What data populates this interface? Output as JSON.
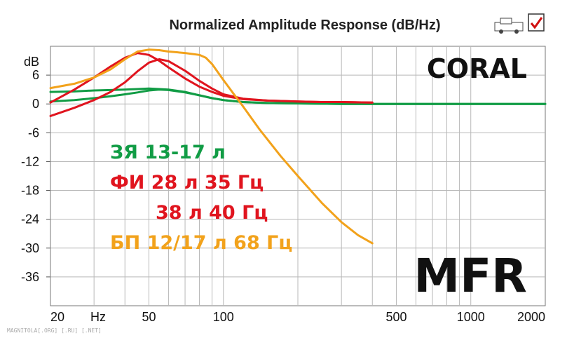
{
  "chart_data": {
    "type": "line",
    "title": "Normalized Amplitude Response (dB/Hz)",
    "y_unit_label": "dB",
    "x_unit_label": "Hz",
    "x_scale": "log",
    "xlim": [
      20,
      2000
    ],
    "ylim": [
      -42,
      12
    ],
    "x_tick_labels": [
      {
        "value": 20,
        "label": "20"
      },
      {
        "value": 50,
        "label": "50"
      },
      {
        "value": 100,
        "label": "100"
      },
      {
        "value": 500,
        "label": "500"
      },
      {
        "value": 1000,
        "label": "1000"
      },
      {
        "value": 2000,
        "label": "2000"
      }
    ],
    "y_tick_labels": [
      {
        "value": 6,
        "label": "6"
      },
      {
        "value": 0,
        "label": "0"
      },
      {
        "value": -6,
        "label": "-6"
      },
      {
        "value": -12,
        "label": "-12"
      },
      {
        "value": -18,
        "label": "-18"
      },
      {
        "value": -24,
        "label": "-24"
      },
      {
        "value": -30,
        "label": "-30"
      },
      {
        "value": -36,
        "label": "-36"
      }
    ],
    "grid": true,
    "brand": "CORAL",
    "watermark": "MFR",
    "annotations": [
      {
        "text": "ЗЯ 13-17 л",
        "color": "#119c45"
      },
      {
        "text": "ФИ 28 л 35 Гц",
        "color": "#e0141e"
      },
      {
        "text": "38 л 40 Гц",
        "color": "#e0141e"
      },
      {
        "text": "БП 12/17 л 68 Гц",
        "color": "#f2a21b"
      }
    ],
    "series": [
      {
        "color": "#119c45",
        "x": [
          20,
          25,
          30,
          35,
          40,
          45,
          50,
          55,
          60,
          70,
          80,
          90,
          100,
          120,
          150,
          200,
          300,
          500,
          1000,
          2000
        ],
        "y": [
          2.5,
          2.6,
          2.8,
          2.9,
          3.0,
          3.1,
          3.2,
          3.1,
          3.0,
          2.5,
          1.8,
          1.2,
          0.8,
          0.4,
          0.2,
          0.1,
          0.0,
          0.0,
          0.0,
          0.0
        ]
      },
      {
        "color": "#119c45",
        "x": [
          20,
          25,
          30,
          35,
          40,
          45,
          50,
          55,
          60,
          70,
          80,
          90,
          100,
          120,
          150,
          200,
          300,
          500,
          1000,
          2000
        ],
        "y": [
          0.5,
          0.8,
          1.2,
          1.6,
          2.0,
          2.4,
          2.8,
          3.0,
          2.9,
          2.4,
          1.8,
          1.2,
          0.8,
          0.4,
          0.2,
          0.1,
          0.0,
          0.0,
          0.0,
          0.0
        ]
      },
      {
        "color": "#e0141e",
        "x": [
          20,
          25,
          30,
          35,
          40,
          45,
          50,
          55,
          60,
          70,
          80,
          90,
          100,
          120,
          150,
          200,
          250,
          300,
          400
        ],
        "y": [
          0.3,
          3.0,
          5.5,
          7.8,
          9.6,
          10.6,
          10.2,
          9.0,
          7.6,
          5.3,
          3.6,
          2.5,
          1.7,
          1.0,
          0.7,
          0.5,
          0.4,
          0.4,
          0.3
        ]
      },
      {
        "color": "#e0141e",
        "x": [
          20,
          25,
          30,
          35,
          40,
          45,
          50,
          55,
          60,
          70,
          80,
          90,
          100,
          120,
          150,
          200,
          250,
          300,
          400
        ],
        "y": [
          -2.5,
          -0.8,
          0.8,
          2.5,
          4.5,
          6.8,
          8.6,
          9.3,
          8.9,
          6.9,
          4.8,
          3.2,
          2.0,
          1.1,
          0.7,
          0.5,
          0.4,
          0.4,
          0.3
        ]
      },
      {
        "color": "#f2a21b",
        "x": [
          20,
          25,
          30,
          35,
          40,
          45,
          50,
          55,
          60,
          70,
          80,
          85,
          90,
          100,
          110,
          120,
          140,
          170,
          200,
          250,
          300,
          350,
          400
        ],
        "y": [
          3.3,
          4.2,
          5.5,
          7.2,
          9.3,
          10.9,
          11.3,
          11.2,
          10.9,
          10.6,
          10.2,
          9.6,
          8.3,
          5.0,
          2.1,
          -0.5,
          -5.3,
          -10.8,
          -15.0,
          -20.6,
          -24.6,
          -27.3,
          -29.0
        ]
      }
    ]
  },
  "footer": {
    "site": "MAGNITOLA[.ORG] [.RU] [.NET]"
  },
  "toolbar": {
    "icons": [
      "car-icon",
      "check-document-icon"
    ]
  }
}
